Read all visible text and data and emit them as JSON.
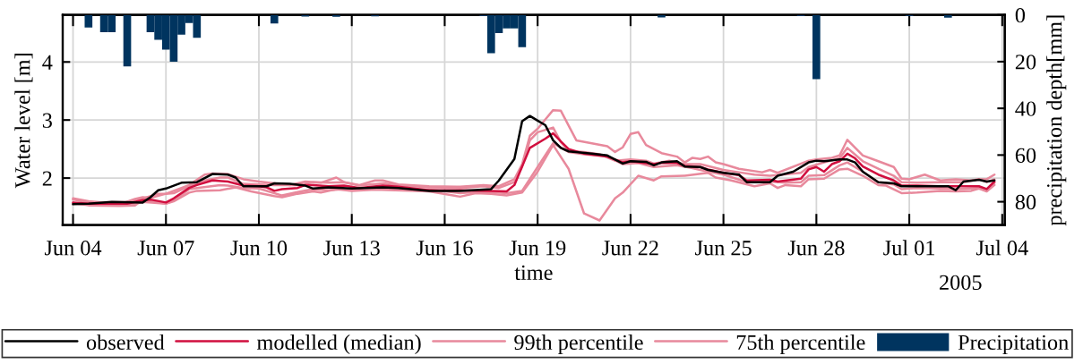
{
  "chart_data": {
    "type": "line",
    "xlabel": "time",
    "ylabel": "Water level [m]",
    "y2label": "precipitation depth[mm]",
    "annotations": [
      "2005"
    ],
    "xlim": [
      "2005-06-03T16:00",
      "2005-07-04T02:00"
    ],
    "xticks": [
      {
        "value": "2005-06-04",
        "label": "Jun 04"
      },
      {
        "value": "2005-06-07",
        "label": "Jun 07"
      },
      {
        "value": "2005-06-10",
        "label": "Jun 10"
      },
      {
        "value": "2005-06-13",
        "label": "Jun 13"
      },
      {
        "value": "2005-06-16",
        "label": "Jun 16"
      },
      {
        "value": "2005-06-19",
        "label": "Jun 19"
      },
      {
        "value": "2005-06-22",
        "label": "Jun 22"
      },
      {
        "value": "2005-06-25",
        "label": "Jun 25"
      },
      {
        "value": "2005-06-28",
        "label": "Jun 28"
      },
      {
        "value": "2005-07-01",
        "label": "Jul 01"
      },
      {
        "value": "2005-07-04",
        "label": "Jul 04"
      }
    ],
    "ylim": [
      1.19,
      4.81
    ],
    "yticks": [
      2,
      3,
      4
    ],
    "y2lim": [
      90,
      0
    ],
    "y2ticks": [
      0,
      20,
      40,
      60,
      80
    ],
    "grid": true,
    "legend": "bottom",
    "series": [
      {
        "name": "observed",
        "color": "#000000",
        "x": [
          "2005-06-04T00:00",
          "2005-06-04T12:00",
          "2005-06-05T06:00",
          "2005-06-06T06:00",
          "2005-06-06T12:00",
          "2005-06-06T18:00",
          "2005-06-07T00:00",
          "2005-06-07T06:00",
          "2005-06-07T12:00",
          "2005-06-08T00:00",
          "2005-06-08T06:00",
          "2005-06-08T12:00",
          "2005-06-09T00:00",
          "2005-06-09T06:00",
          "2005-06-09T12:00",
          "2005-06-10T06:00",
          "2005-06-10T12:00",
          "2005-06-11T00:00",
          "2005-06-11T12:00",
          "2005-06-11T18:00",
          "2005-06-12T06:00",
          "2005-06-13T00:00",
          "2005-06-14T00:00",
          "2005-06-14T12:00",
          "2005-06-15T12:00",
          "2005-06-16T12:00",
          "2005-06-17T12:00",
          "2005-06-17T18:00",
          "2005-06-18T06:00",
          "2005-06-18T12:00",
          "2005-06-18T18:00",
          "2005-06-19T00:00",
          "2005-06-19T06:00",
          "2005-06-19T12:00",
          "2005-06-19T18:00",
          "2005-06-20T00:00",
          "2005-06-20T18:00",
          "2005-06-21T06:00",
          "2005-06-21T12:00",
          "2005-06-21T18:00",
          "2005-06-22T00:00",
          "2005-06-22T12:00",
          "2005-06-22T18:00",
          "2005-06-23T00:00",
          "2005-06-23T12:00",
          "2005-06-23T18:00",
          "2005-06-24T06:00",
          "2005-06-24T12:00",
          "2005-06-25T00:00",
          "2005-06-25T12:00",
          "2005-06-25T18:00",
          "2005-06-26T12:00",
          "2005-06-26T18:00",
          "2005-06-27T06:00",
          "2005-06-27T18:00",
          "2005-06-28T00:00",
          "2005-06-28T06:00",
          "2005-06-28T18:00",
          "2005-06-29T00:00",
          "2005-06-29T06:00",
          "2005-06-29T12:00",
          "2005-06-30T00:00",
          "2005-06-30T12:00",
          "2005-06-30T18:00",
          "2005-07-01T18:00",
          "2005-07-02T06:00",
          "2005-07-02T12:00",
          "2005-07-02T18:00",
          "2005-07-03T06:00",
          "2005-07-03T12:00",
          "2005-07-03T18:00"
        ],
        "values": [
          1.55,
          1.56,
          1.59,
          1.58,
          1.67,
          1.79,
          1.82,
          1.87,
          1.92,
          1.93,
          2.0,
          2.07,
          2.06,
          2.01,
          1.86,
          1.86,
          1.91,
          1.9,
          1.87,
          1.82,
          1.84,
          1.82,
          1.84,
          1.83,
          1.78,
          1.78,
          1.81,
          1.96,
          2.33,
          2.98,
          3.07,
          2.99,
          2.91,
          2.65,
          2.52,
          2.46,
          2.42,
          2.39,
          2.32,
          2.25,
          2.29,
          2.28,
          2.22,
          2.27,
          2.29,
          2.2,
          2.19,
          2.14,
          2.09,
          2.06,
          1.93,
          1.93,
          2.04,
          2.11,
          2.27,
          2.3,
          2.29,
          2.32,
          2.32,
          2.27,
          2.11,
          1.93,
          1.91,
          1.86,
          1.86,
          1.86,
          1.79,
          1.94,
          1.97,
          1.94,
          1.96
        ]
      },
      {
        "name": "modelled (median)",
        "color": "#d10f3f",
        "x": [
          "2005-06-04T00:00",
          "2005-06-04T12:00",
          "2005-06-05T18:00",
          "2005-06-06T06:00",
          "2005-06-06T12:00",
          "2005-06-07T00:00",
          "2005-06-07T06:00",
          "2005-06-07T18:00",
          "2005-06-08T00:00",
          "2005-06-08T12:00",
          "2005-06-09T00:00",
          "2005-06-09T12:00",
          "2005-06-10T00:00",
          "2005-06-10T06:00",
          "2005-06-10T12:00",
          "2005-06-10T18:00",
          "2005-06-11T06:00",
          "2005-06-11T12:00",
          "2005-06-11T18:00",
          "2005-06-12T06:00",
          "2005-06-12T18:00",
          "2005-06-13T06:00",
          "2005-06-14T00:00",
          "2005-06-14T12:00",
          "2005-06-15T12:00",
          "2005-06-16T12:00",
          "2005-06-17T12:00",
          "2005-06-18T00:00",
          "2005-06-18T06:00",
          "2005-06-18T18:00",
          "2005-06-19T06:00",
          "2005-06-19T12:00",
          "2005-06-19T18:00",
          "2005-06-20T00:00",
          "2005-06-20T12:00",
          "2005-06-21T06:00",
          "2005-06-21T18:00",
          "2005-06-22T00:00",
          "2005-06-22T18:00",
          "2005-06-23T00:00",
          "2005-06-23T12:00",
          "2005-06-23T18:00",
          "2005-06-24T06:00",
          "2005-06-24T12:00",
          "2005-06-25T00:00",
          "2005-06-25T12:00",
          "2005-06-25T18:00",
          "2005-06-26T12:00",
          "2005-06-26T18:00",
          "2005-06-27T12:00",
          "2005-06-27T18:00",
          "2005-06-28T00:00",
          "2005-06-28T06:00",
          "2005-06-28T12:00",
          "2005-06-28T18:00",
          "2005-06-29T00:00",
          "2005-06-29T06:00",
          "2005-06-29T12:00",
          "2005-06-30T00:00",
          "2005-06-30T12:00",
          "2005-06-30T18:00",
          "2005-07-01T06:00",
          "2005-07-02T00:00",
          "2005-07-02T18:00",
          "2005-07-03T06:00",
          "2005-07-03T12:00",
          "2005-07-03T18:00"
        ],
        "values": [
          1.58,
          1.56,
          1.56,
          1.62,
          1.63,
          1.58,
          1.65,
          1.83,
          1.88,
          1.96,
          1.94,
          1.87,
          1.86,
          1.84,
          1.78,
          1.81,
          1.83,
          1.88,
          1.88,
          1.86,
          1.87,
          1.83,
          1.87,
          1.85,
          1.79,
          1.79,
          1.78,
          1.77,
          1.88,
          2.52,
          2.68,
          2.77,
          2.63,
          2.5,
          2.42,
          2.37,
          2.27,
          2.29,
          2.24,
          2.26,
          2.26,
          2.21,
          2.19,
          2.15,
          2.09,
          2.05,
          1.96,
          1.97,
          1.94,
          1.99,
          2.15,
          2.19,
          2.11,
          2.24,
          2.29,
          2.42,
          2.34,
          2.2,
          2.06,
          1.96,
          1.87,
          1.87,
          1.86,
          1.86,
          1.86,
          1.81,
          1.94
        ]
      },
      {
        "name": "99th percentile",
        "color": "#e8899c",
        "x": [
          "2005-06-04T00:00",
          "2005-06-04T12:00",
          "2005-06-05T00:00",
          "2005-06-05T12:00",
          "2005-06-06T00:00",
          "2005-06-06T06:00",
          "2005-06-06T12:00",
          "2005-06-07T00:00",
          "2005-06-07T06:00",
          "2005-06-07T18:00",
          "2005-06-08T06:00",
          "2005-06-08T12:00",
          "2005-06-09T00:00",
          "2005-06-09T12:00",
          "2005-06-10T00:00",
          "2005-06-10T12:00",
          "2005-06-11T00:00",
          "2005-06-11T12:00",
          "2005-06-12T00:00",
          "2005-06-12T12:00",
          "2005-06-12T18:00",
          "2005-06-13T06:00",
          "2005-06-13T18:00",
          "2005-06-14T00:00",
          "2005-06-14T12:00",
          "2005-06-15T12:00",
          "2005-06-16T12:00",
          "2005-06-17T06:00",
          "2005-06-17T18:00",
          "2005-06-18T06:00",
          "2005-06-18T12:00",
          "2005-06-18T18:00",
          "2005-06-19T00:00",
          "2005-06-19T06:00",
          "2005-06-19T12:00",
          "2005-06-19T18:00",
          "2005-06-20T06:00",
          "2005-06-20T18:00",
          "2005-06-21T06:00",
          "2005-06-21T12:00",
          "2005-06-21T18:00",
          "2005-06-22T00:00",
          "2005-06-22T06:00",
          "2005-06-22T12:00",
          "2005-06-23T00:00",
          "2005-06-23T12:00",
          "2005-06-23T18:00",
          "2005-06-24T00:00",
          "2005-06-24T06:00",
          "2005-06-24T12:00",
          "2005-06-24T18:00",
          "2005-06-25T00:00",
          "2005-06-25T12:00",
          "2005-06-26T06:00",
          "2005-06-26T12:00",
          "2005-06-26T18:00",
          "2005-06-27T18:00",
          "2005-06-28T00:00",
          "2005-06-28T12:00",
          "2005-06-28T18:00",
          "2005-06-29T00:00",
          "2005-06-29T12:00",
          "2005-06-30T00:00",
          "2005-06-30T12:00",
          "2005-06-30T18:00",
          "2005-07-01T00:00",
          "2005-07-01T12:00",
          "2005-07-02T00:00",
          "2005-07-02T12:00",
          "2005-07-03T00:00",
          "2005-07-03T06:00",
          "2005-07-03T12:00",
          "2005-07-03T18:00"
        ],
        "values": [
          1.65,
          1.6,
          1.58,
          1.55,
          1.64,
          1.67,
          1.66,
          1.73,
          1.78,
          1.88,
          2.06,
          2.08,
          2.07,
          1.98,
          1.94,
          1.91,
          1.88,
          1.94,
          1.92,
          2.01,
          1.93,
          1.88,
          1.96,
          1.96,
          1.89,
          1.86,
          1.85,
          1.88,
          1.86,
          1.98,
          2.24,
          2.73,
          2.85,
          3.01,
          3.17,
          3.16,
          2.65,
          2.6,
          2.55,
          2.45,
          2.53,
          2.76,
          2.79,
          2.57,
          2.43,
          2.37,
          2.27,
          2.35,
          2.33,
          2.37,
          2.27,
          2.24,
          2.16,
          2.1,
          2.14,
          2.09,
          2.3,
          2.32,
          2.35,
          2.39,
          2.66,
          2.39,
          2.29,
          2.19,
          1.99,
          1.98,
          2.06,
          1.96,
          1.98,
          1.96,
          1.98,
          1.98,
          2.06
        ]
      },
      {
        "color": "#e8899c",
        "x": [
          "2005-06-04T00:00",
          "2005-06-04T12:00",
          "2005-06-05T12:00",
          "2005-06-06T00:00",
          "2005-06-06T06:00",
          "2005-06-07T00:00",
          "2005-06-07T06:00",
          "2005-06-07T18:00",
          "2005-06-08T00:00",
          "2005-06-08T18:00",
          "2005-06-09T06:00",
          "2005-06-09T18:00",
          "2005-06-10T12:00",
          "2005-06-10T18:00",
          "2005-06-11T06:00",
          "2005-06-11T18:00",
          "2005-06-12T00:00",
          "2005-06-12T12:00",
          "2005-06-13T00:00",
          "2005-06-13T18:00",
          "2005-06-15T12:00",
          "2005-06-16T12:00",
          "2005-06-17T00:00",
          "2005-06-17T12:00",
          "2005-06-18T00:00",
          "2005-06-18T12:00",
          "2005-06-19T00:00",
          "2005-06-19T12:00",
          "2005-06-20T00:00",
          "2005-06-20T12:00",
          "2005-06-21T00:00",
          "2005-06-21T12:00",
          "2005-06-21T18:00",
          "2005-06-22T06:00",
          "2005-06-22T18:00",
          "2005-06-23T00:00",
          "2005-06-23T18:00",
          "2005-06-24T12:00",
          "2005-06-24T18:00",
          "2005-06-25T06:00",
          "2005-06-26T00:00",
          "2005-06-26T12:00",
          "2005-06-26T18:00",
          "2005-06-27T00:00",
          "2005-06-27T12:00",
          "2005-06-27T18:00",
          "2005-06-28T06:00",
          "2005-06-28T18:00",
          "2005-06-29T00:00",
          "2005-06-29T12:00",
          "2005-06-30T00:00",
          "2005-06-30T06:00",
          "2005-06-30T18:00",
          "2005-07-01T06:00",
          "2005-07-02T00:00",
          "2005-07-02T12:00",
          "2005-07-03T00:00",
          "2005-07-03T06:00",
          "2005-07-03T12:00",
          "2005-07-03T18:00"
        ],
        "values": [
          1.57,
          1.53,
          1.52,
          1.53,
          1.62,
          1.56,
          1.6,
          1.75,
          1.78,
          1.79,
          1.84,
          1.77,
          1.69,
          1.67,
          1.73,
          1.77,
          1.75,
          1.81,
          1.78,
          1.8,
          1.77,
          1.68,
          1.74,
          1.73,
          1.7,
          1.75,
          2.11,
          2.57,
          2.16,
          1.39,
          1.27,
          1.65,
          1.75,
          2.04,
          1.96,
          2.03,
          2.04,
          2.09,
          2.01,
          1.96,
          1.86,
          1.91,
          1.83,
          1.88,
          1.86,
          1.98,
          1.99,
          2.15,
          2.16,
          2.04,
          1.88,
          1.87,
          1.74,
          1.75,
          1.78,
          1.77,
          1.78,
          1.82,
          1.77,
          1.88
        ]
      },
      {
        "name": "75th percentile",
        "color": "#e8899c",
        "x": [
          "2005-06-04T00:00",
          "2005-06-04T12:00",
          "2005-06-05T18:00",
          "2005-06-06T06:00",
          "2005-06-06T18:00",
          "2005-06-07T00:00",
          "2005-06-07T06:00",
          "2005-06-07T18:00",
          "2005-06-08T06:00",
          "2005-06-08T18:00",
          "2005-06-09T00:00",
          "2005-06-09T12:00",
          "2005-06-10T00:00",
          "2005-06-10T12:00",
          "2005-06-11T06:00",
          "2005-06-11T18:00",
          "2005-06-12T06:00",
          "2005-06-12T18:00",
          "2005-06-13T06:00",
          "2005-06-14T00:00",
          "2005-06-14T12:00",
          "2005-06-15T12:00",
          "2005-06-16T12:00",
          "2005-06-17T06:00",
          "2005-06-17T18:00",
          "2005-06-18T06:00",
          "2005-06-18T12:00",
          "2005-06-18T18:00",
          "2005-06-19T00:00",
          "2005-06-19T12:00",
          "2005-06-19T18:00",
          "2005-06-20T00:00",
          "2005-06-20T12:00",
          "2005-06-21T00:00",
          "2005-06-21T12:00",
          "2005-06-22T00:00",
          "2005-06-22T12:00",
          "2005-06-22T18:00",
          "2005-06-23T06:00",
          "2005-06-23T18:00",
          "2005-06-24T06:00",
          "2005-06-25T00:00",
          "2005-06-25T12:00",
          "2005-06-26T00:00",
          "2005-06-26T12:00",
          "2005-06-27T12:00",
          "2005-06-27T18:00",
          "2005-06-28T06:00",
          "2005-06-28T18:00",
          "2005-06-29T00:00",
          "2005-06-29T12:00",
          "2005-06-30T00:00",
          "2005-06-30T12:00",
          "2005-06-30T18:00",
          "2005-07-01T06:00",
          "2005-07-02T00:00",
          "2005-07-02T18:00",
          "2005-07-03T06:00",
          "2005-07-03T12:00",
          "2005-07-03T18:00"
        ],
        "values": [
          1.63,
          1.58,
          1.59,
          1.65,
          1.73,
          1.73,
          1.74,
          1.86,
          1.96,
          2.01,
          2.01,
          1.9,
          1.89,
          1.88,
          1.88,
          1.93,
          1.92,
          1.93,
          1.87,
          1.91,
          1.88,
          1.84,
          1.83,
          1.86,
          1.83,
          1.93,
          2.2,
          2.65,
          2.79,
          2.87,
          2.62,
          2.47,
          2.45,
          2.41,
          2.3,
          2.32,
          2.3,
          2.25,
          2.3,
          2.24,
          2.24,
          2.14,
          2.1,
          2.06,
          2.04,
          2.09,
          2.19,
          2.27,
          2.34,
          2.52,
          2.29,
          2.16,
          2.04,
          1.93,
          1.92,
          1.93,
          1.93,
          1.98,
          1.93,
          1.98
        ]
      },
      {
        "color": "#e8899c",
        "x": [
          "2005-06-04T00:00",
          "2005-06-05T18:00",
          "2005-06-06T06:00",
          "2005-06-07T00:00",
          "2005-06-07T06:00",
          "2005-06-07T18:00",
          "2005-06-08T00:00",
          "2005-06-08T18:00",
          "2005-06-09T00:00",
          "2005-06-09T12:00",
          "2005-06-10T00:00",
          "2005-06-10T12:00",
          "2005-06-10T18:00",
          "2005-06-11T06:00",
          "2005-06-11T18:00",
          "2005-06-12T06:00",
          "2005-06-12T18:00",
          "2005-06-14T00:00",
          "2005-06-14T12:00",
          "2005-06-15T12:00",
          "2005-06-16T12:00",
          "2005-06-17T00:00",
          "2005-06-17T12:00",
          "2005-06-18T00:00",
          "2005-06-18T12:00",
          "2005-06-19T00:00",
          "2005-06-19T12:00",
          "2005-06-20T00:00",
          "2005-06-20T12:00",
          "2005-06-21T06:00",
          "2005-06-21T18:00",
          "2005-06-22T06:00",
          "2005-06-22T18:00",
          "2005-06-23T12:00",
          "2005-06-24T00:00",
          "2005-06-24T06:00",
          "2005-06-25T00:00",
          "2005-06-25T18:00",
          "2005-06-26T12:00",
          "2005-06-27T00:00",
          "2005-06-27T12:00",
          "2005-06-27T18:00",
          "2005-06-28T06:00",
          "2005-06-28T18:00",
          "2005-06-29T00:00",
          "2005-06-29T12:00",
          "2005-06-30T00:00",
          "2005-06-30T12:00",
          "2005-06-30T18:00",
          "2005-07-01T06:00",
          "2005-07-02T00:00",
          "2005-07-02T12:00",
          "2005-07-03T06:00",
          "2005-07-03T12:00",
          "2005-07-03T18:00"
        ],
        "values": [
          1.56,
          1.53,
          1.59,
          1.56,
          1.61,
          1.81,
          1.83,
          1.88,
          1.87,
          1.83,
          1.82,
          1.74,
          1.7,
          1.76,
          1.81,
          1.79,
          1.81,
          1.82,
          1.8,
          1.8,
          1.74,
          1.76,
          1.76,
          1.74,
          1.78,
          2.19,
          2.6,
          2.45,
          2.41,
          2.37,
          2.24,
          2.26,
          2.19,
          2.22,
          2.17,
          2.14,
          2.06,
          1.93,
          1.94,
          1.92,
          1.93,
          2.04,
          2.05,
          2.22,
          2.27,
          2.11,
          1.93,
          1.89,
          1.81,
          1.83,
          1.82,
          1.81,
          1.83,
          1.78,
          1.92
        ]
      },
      {
        "name": "Precipitation",
        "type": "bar",
        "axis": "y2",
        "color": "#00345f",
        "x": [
          "2005-06-04T12:00",
          "2005-06-05T00:00",
          "2005-06-05T06:00",
          "2005-06-05T18:00",
          "2005-06-06T12:00",
          "2005-06-06T18:00",
          "2005-06-07T00:00",
          "2005-06-07T06:00",
          "2005-06-07T12:00",
          "2005-06-07T18:00",
          "2005-06-08T00:00",
          "2005-06-10T12:00",
          "2005-06-11T12:00",
          "2005-06-12T12:00",
          "2005-06-13T18:00",
          "2005-06-17T06:00",
          "2005-06-17T12:00",
          "2005-06-17T18:00",
          "2005-06-18T00:00",
          "2005-06-18T06:00",
          "2005-06-18T12:00",
          "2005-06-23T00:00",
          "2005-06-27T12:00",
          "2005-06-28T00:00",
          "2005-07-01T00:00",
          "2005-07-02T06:00"
        ],
        "values": [
          5.4,
          7.4,
          7.4,
          22,
          7.4,
          10.6,
          14.9,
          20,
          8.4,
          3.5,
          9.8,
          3.7,
          0.7,
          0.8,
          0.6,
          0.5,
          16.4,
          7.8,
          5.8,
          5.8,
          13.8,
          1.1,
          0.5,
          27.5,
          0.5,
          1.2
        ]
      }
    ]
  }
}
